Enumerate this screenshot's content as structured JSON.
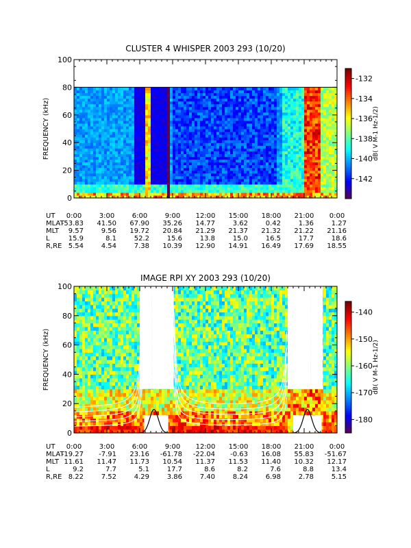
{
  "chart_data": [
    {
      "type": "heatmap",
      "title": "CLUSTER 4 WHISPER 2003 293 (10/20)",
      "ylabel": "FREQUENCY (kHz)",
      "ylim": [
        0,
        100
      ],
      "yticks": [
        "0",
        "20",
        "40",
        "60",
        "80",
        "100"
      ],
      "xlim_hours": [
        0,
        24
      ],
      "colorbar": {
        "label": "dB( V M-1 Hz-1/2)",
        "range": [
          -144,
          -131
        ],
        "ticks": [
          "-132",
          "-134",
          "-136",
          "-138",
          "-140",
          "-142"
        ]
      },
      "ephemeris": {
        "row_labels": [
          "UT",
          "MLAT",
          "MLT",
          "L",
          "R,RE"
        ],
        "columns": [
          [
            "0:00",
            "-53.83",
            "9.57",
            "15.9",
            "5.54"
          ],
          [
            "3:00",
            "41.50",
            "9.56",
            "8.1",
            "4.54"
          ],
          [
            "6:00",
            "67.90",
            "19.72",
            "52.2",
            "7.38"
          ],
          [
            "9:00",
            "35.26",
            "20.84",
            "15.6",
            "10.39"
          ],
          [
            "12:00",
            "14.77",
            "21.29",
            "13.8",
            "12.90"
          ],
          [
            "15:00",
            "3.62",
            "21.37",
            "15.0",
            "14.91"
          ],
          [
            "18:00",
            "0.42",
            "21.32",
            "16.5",
            "16.49"
          ],
          [
            "21:00",
            "1.36",
            "21.22",
            "17.7",
            "17.69"
          ],
          [
            "0:00",
            "1.27",
            "21.16",
            "18.6",
            "18.55"
          ]
        ]
      }
    },
    {
      "type": "heatmap",
      "title": "IMAGE RPI XY 2003 293 (10/20)",
      "ylabel": "FREQUENCY (kHz)",
      "ylim": [
        0,
        100
      ],
      "yticks": [
        "0",
        "20",
        "40",
        "60",
        "80",
        "100"
      ],
      "xlim_hours": [
        0,
        24
      ],
      "colorbar": {
        "label": "dB( V M-1 Hz-1/2)",
        "range": [
          -185,
          -136
        ],
        "ticks": [
          "-140",
          "-150",
          "-160",
          "-170",
          "-180"
        ]
      },
      "ephemeris": {
        "row_labels": [
          "UT",
          "MLAT",
          "MLT",
          "L",
          "R,RE"
        ],
        "columns": [
          [
            "0:00",
            "-19.27",
            "11.61",
            "9.2",
            "8.22"
          ],
          [
            "3:00",
            "-7.91",
            "11.47",
            "7.7",
            "7.52"
          ],
          [
            "6:00",
            "23.16",
            "11.73",
            "5.1",
            "4.29"
          ],
          [
            "9:00",
            "-61.78",
            "10.54",
            "17.7",
            "3.86"
          ],
          [
            "12:00",
            "-22.04",
            "11.37",
            "8.6",
            "7.40"
          ],
          [
            "15:00",
            "-0.63",
            "11.53",
            "8.2",
            "8.24"
          ],
          [
            "18:00",
            "16.08",
            "11.40",
            "7.6",
            "6.98"
          ],
          [
            "21:00",
            "55.83",
            "10.32",
            "8.8",
            "2.78"
          ],
          [
            "0:00",
            "-51.67",
            "12.17",
            "13.4",
            "5.15"
          ]
        ]
      }
    }
  ]
}
